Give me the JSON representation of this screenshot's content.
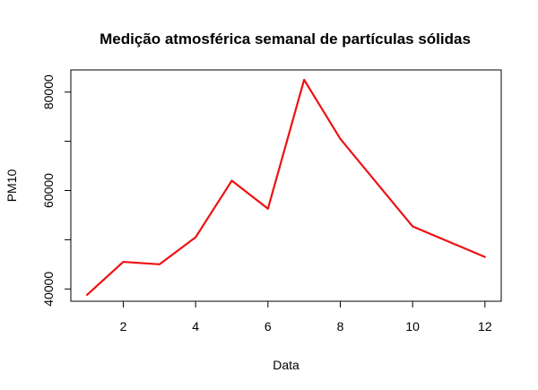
{
  "chart_data": {
    "type": "line",
    "title": "Medição atmosférica semanal de partículas sólidas",
    "xlabel": "Data",
    "ylabel": "PM10",
    "xlim": [
      0.55,
      12.45
    ],
    "ylim": [
      37500,
      84500
    ],
    "x_ticks": [
      2,
      4,
      6,
      8,
      10,
      12
    ],
    "y_ticks": [
      40000,
      60000,
      80000
    ],
    "grid": false,
    "series": [
      {
        "color": "#ee1111",
        "x": [
          1,
          2,
          3,
          4,
          5,
          6,
          7,
          8,
          10,
          12
        ],
        "values": [
          38800,
          45500,
          45000,
          50500,
          62000,
          56300,
          82500,
          70500,
          52700,
          46500
        ]
      }
    ]
  }
}
